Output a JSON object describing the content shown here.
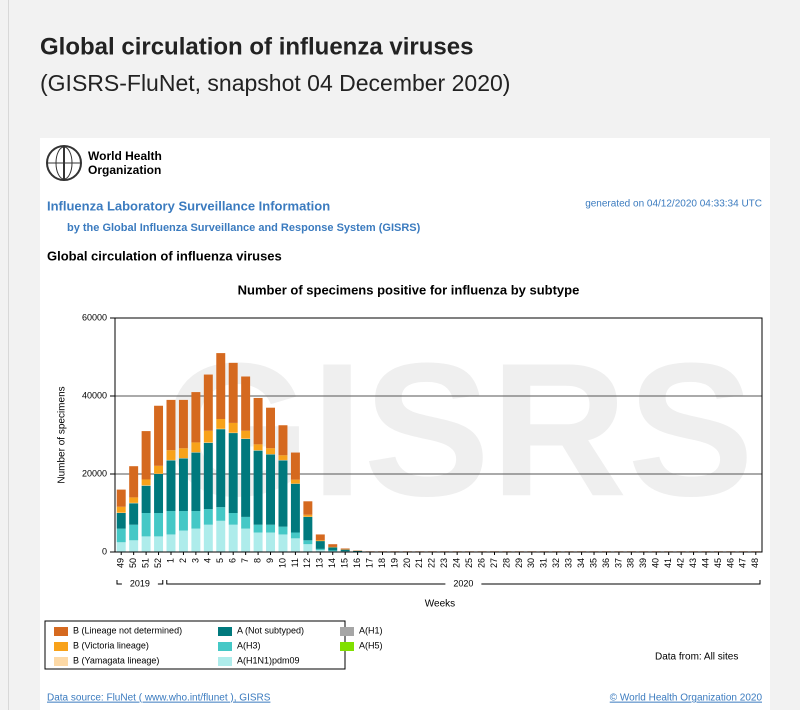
{
  "header": {
    "title": "Global circulation of influenza viruses",
    "subtitle": "(GISRS-FluNet, snapshot 04 December 2020)"
  },
  "report": {
    "org_lines": [
      "World Health",
      "Organization"
    ],
    "heading": "Influenza Laboratory Surveillance Information",
    "subheading": "by the Global Influenza Surveillance and Response System (GISRS)",
    "generated": "generated on 04/12/2020 04:33:34 UTC",
    "section_title": "Global circulation of influenza viruses",
    "data_from": "Data from: All sites",
    "source": "Data source: FluNet ( www.who.int/flunet ), GISRS",
    "copyright": "© World Health Organization 2020"
  },
  "chart_data": {
    "type": "stacked_bar",
    "title": "Number of specimens positive for influenza by subtype",
    "watermark": "GISRS",
    "x_label": "Weeks",
    "y_label": "Number of specimens",
    "year_labels": [
      "2019",
      "2020"
    ],
    "categories": [
      "49",
      "50",
      "51",
      "52",
      "1",
      "2",
      "3",
      "4",
      "5",
      "6",
      "7",
      "8",
      "9",
      "10",
      "11",
      "12",
      "13",
      "14",
      "15",
      "16",
      "17",
      "18",
      "19",
      "20",
      "21",
      "22",
      "23",
      "24",
      "25",
      "26",
      "27",
      "28",
      "29",
      "30",
      "31",
      "32",
      "33",
      "34",
      "35",
      "36",
      "37",
      "38",
      "39",
      "40",
      "41",
      "42",
      "43",
      "44",
      "45",
      "46",
      "47",
      "48"
    ],
    "ylim": [
      0,
      60000
    ],
    "yticks": [
      0,
      20000,
      40000,
      60000
    ],
    "grid": true,
    "series": [
      {
        "name": "A(H1N1)pdm09",
        "color": "#aeeceb",
        "values": [
          2500,
          3000,
          4000,
          4000,
          4500,
          5500,
          6000,
          7000,
          8000,
          7000,
          6000,
          5000,
          5000,
          4500,
          3500,
          2000,
          500,
          200,
          100,
          50,
          20,
          20,
          20,
          20,
          20,
          20,
          20,
          20,
          20,
          20,
          20,
          20,
          20,
          20,
          20,
          20,
          20,
          20,
          20,
          20,
          20,
          20,
          20,
          20,
          20,
          20,
          20,
          20,
          20,
          20,
          20,
          20
        ]
      },
      {
        "name": "A(H3)",
        "color": "#45c8c6",
        "values": [
          3500,
          4000,
          6000,
          6000,
          6000,
          5000,
          4500,
          4000,
          3500,
          3000,
          3000,
          2000,
          2000,
          2000,
          1500,
          1000,
          300,
          200,
          100,
          50,
          20,
          20,
          20,
          20,
          20,
          20,
          20,
          20,
          20,
          20,
          20,
          20,
          20,
          20,
          20,
          20,
          20,
          20,
          20,
          20,
          20,
          20,
          20,
          20,
          20,
          20,
          20,
          20,
          20,
          20,
          20,
          20
        ]
      },
      {
        "name": "A (Not subtyped)",
        "color": "#00797d",
        "values": [
          4000,
          5500,
          7000,
          10000,
          13000,
          13500,
          15000,
          17000,
          20000,
          20500,
          20000,
          19000,
          18000,
          17000,
          12500,
          6000,
          2000,
          800,
          400,
          200,
          80,
          80,
          80,
          80,
          80,
          80,
          80,
          80,
          80,
          80,
          80,
          80,
          80,
          80,
          80,
          80,
          80,
          80,
          80,
          80,
          80,
          80,
          80,
          80,
          80,
          80,
          80,
          80,
          80,
          80,
          80,
          80
        ]
      },
      {
        "name": "A(H1)",
        "color": "#a6a6a6",
        "values": [
          0,
          0,
          0,
          0,
          0,
          0,
          0,
          0,
          0,
          0,
          0,
          0,
          0,
          0,
          0,
          0,
          0,
          0,
          0,
          0,
          0,
          0,
          0,
          0,
          0,
          0,
          0,
          0,
          0,
          0,
          0,
          0,
          0,
          0,
          0,
          0,
          0,
          0,
          0,
          0,
          0,
          0,
          0,
          0,
          0,
          0,
          0,
          0,
          0,
          0,
          0,
          0
        ]
      },
      {
        "name": "A(H5)",
        "color": "#80e000",
        "values": [
          0,
          0,
          0,
          0,
          0,
          0,
          0,
          0,
          0,
          0,
          0,
          0,
          0,
          0,
          0,
          0,
          0,
          0,
          0,
          0,
          0,
          0,
          0,
          0,
          0,
          0,
          0,
          0,
          0,
          0,
          0,
          0,
          0,
          0,
          0,
          0,
          0,
          0,
          0,
          0,
          0,
          0,
          0,
          0,
          0,
          0,
          0,
          0,
          0,
          0,
          0,
          0
        ]
      },
      {
        "name": "B (Yamagata lineage)",
        "color": "#fdd9a6",
        "values": [
          100,
          100,
          100,
          100,
          100,
          100,
          100,
          100,
          100,
          100,
          100,
          100,
          100,
          100,
          50,
          50,
          0,
          0,
          0,
          0,
          0,
          0,
          0,
          0,
          0,
          0,
          0,
          0,
          0,
          0,
          0,
          0,
          0,
          0,
          0,
          0,
          0,
          0,
          0,
          0,
          0,
          0,
          0,
          0,
          0,
          0,
          0,
          0,
          0,
          0,
          0,
          0
        ]
      },
      {
        "name": "B (Victoria lineage)",
        "color": "#f8a21a",
        "values": [
          1500,
          1400,
          1500,
          2000,
          2500,
          2500,
          2500,
          3000,
          2500,
          2500,
          2000,
          1500,
          1500,
          1200,
          1000,
          500,
          200,
          100,
          50,
          20,
          10,
          10,
          10,
          10,
          10,
          10,
          10,
          10,
          10,
          10,
          10,
          10,
          10,
          10,
          10,
          10,
          10,
          10,
          10,
          10,
          10,
          10,
          10,
          10,
          10,
          10,
          10,
          10,
          10,
          10,
          10,
          10
        ]
      },
      {
        "name": "B (Lineage not determined)",
        "color": "#d5691f",
        "values": [
          4400,
          8000,
          12400,
          15400,
          12900,
          12400,
          12900,
          14400,
          16900,
          15400,
          13900,
          11900,
          10400,
          7700,
          6950,
          3450,
          1500,
          700,
          250,
          80,
          40,
          40,
          40,
          40,
          40,
          40,
          40,
          40,
          40,
          40,
          40,
          40,
          40,
          40,
          40,
          40,
          40,
          40,
          40,
          40,
          40,
          40,
          40,
          40,
          40,
          40,
          40,
          40,
          40,
          40,
          40,
          40
        ]
      }
    ]
  }
}
